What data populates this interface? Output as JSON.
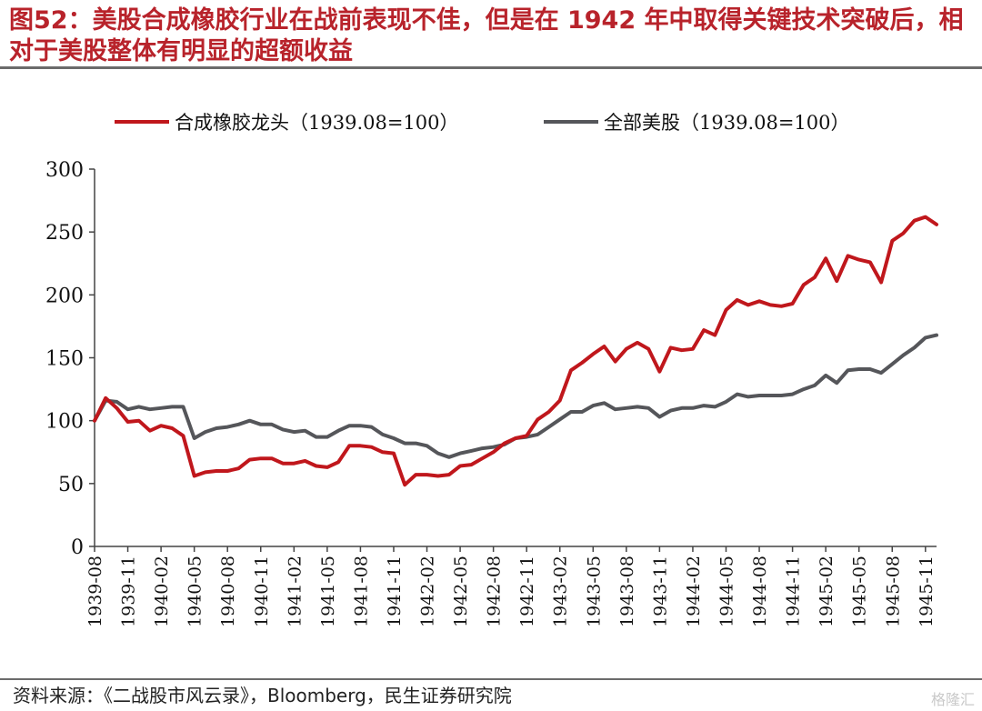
{
  "title": "图52：美股合成橡胶行业在战前表现不佳，但是在 1942 年中取得关键技术突破后，相对于美股整体有明显的超额收益",
  "source": "资料来源：《二战股市风云录》，Bloomberg，民生证券研究院",
  "watermark": "格隆汇",
  "chart_data": {
    "type": "line",
    "x_start": "1939-08",
    "x_end": "1945-12",
    "x_tick_labels": [
      "1939-08",
      "1939-11",
      "1940-02",
      "1940-05",
      "1940-08",
      "1940-11",
      "1941-02",
      "1941-05",
      "1941-08",
      "1941-11",
      "1942-02",
      "1942-05",
      "1942-08",
      "1942-11",
      "1943-02",
      "1943-05",
      "1943-08",
      "1943-11",
      "1944-02",
      "1944-05",
      "1944-08",
      "1944-11",
      "1945-02",
      "1945-05",
      "1945-08",
      "1945-11"
    ],
    "ylim": [
      0,
      300
    ],
    "y_ticks": [
      "0",
      "50",
      "100",
      "150",
      "200",
      "250",
      "300"
    ],
    "legend_position": "top",
    "grid": false,
    "series": [
      {
        "name": "合成橡胶龙头（1939.08=100）",
        "color": "#c0171c",
        "values": [
          100,
          118,
          110,
          99,
          100,
          92,
          96,
          94,
          88,
          56,
          59,
          60,
          60,
          62,
          69,
          70,
          70,
          66,
          66,
          68,
          64,
          63,
          67,
          80,
          80,
          79,
          75,
          74,
          49,
          57,
          57,
          56,
          57,
          64,
          65,
          70,
          75,
          82,
          86,
          88,
          101,
          107,
          116,
          140,
          146,
          153,
          159,
          147,
          157,
          162,
          157,
          139,
          158,
          156,
          157,
          172,
          168,
          188,
          196,
          192,
          195,
          192,
          191,
          193,
          208,
          214,
          229,
          211,
          231,
          228,
          226,
          210,
          243,
          249,
          259,
          262,
          256
        ]
      },
      {
        "name": "全部美股（1939.08=100）",
        "color": "#55565a",
        "values": [
          100,
          116,
          115,
          109,
          111,
          109,
          110,
          111,
          111,
          86,
          91,
          94,
          95,
          97,
          100,
          97,
          97,
          93,
          91,
          92,
          87,
          87,
          92,
          96,
          96,
          95,
          89,
          86,
          82,
          82,
          80,
          74,
          71,
          74,
          76,
          78,
          79,
          81,
          86,
          87,
          89,
          95,
          101,
          107,
          107,
          112,
          114,
          109,
          110,
          111,
          110,
          103,
          108,
          110,
          110,
          112,
          111,
          115,
          121,
          119,
          120,
          120,
          120,
          121,
          125,
          128,
          136,
          130,
          140,
          141,
          141,
          138,
          145,
          152,
          158,
          166,
          168
        ]
      }
    ]
  }
}
